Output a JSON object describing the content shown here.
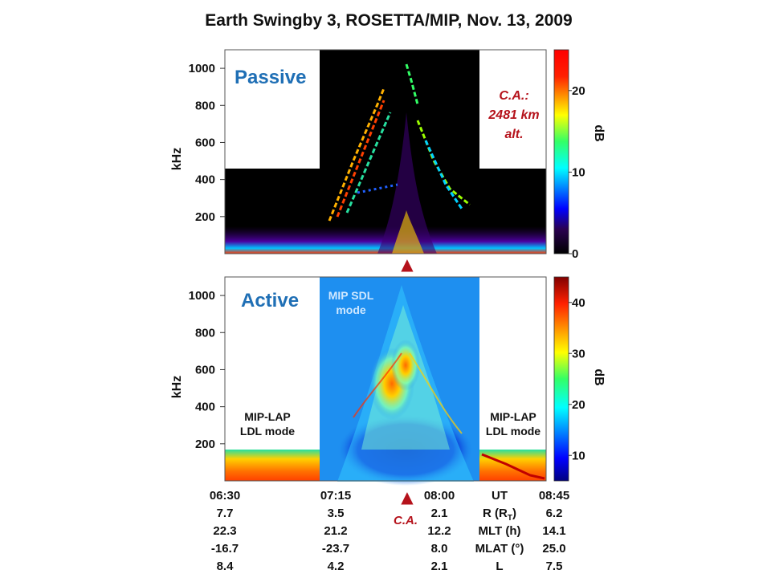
{
  "title": "Earth Swingby 3, ROSETTA/MIP, Nov. 13, 2009",
  "chart_data": [
    {
      "type": "heatmap",
      "panel_label": "Passive",
      "ylabel": "kHz",
      "yticks": [
        "1000",
        "800",
        "600",
        "400",
        "200"
      ],
      "ylim": [
        0,
        1100
      ],
      "colorbar": {
        "label": "dB",
        "ticks": [
          "20",
          "10",
          "0"
        ],
        "range": [
          0,
          25
        ]
      },
      "annotation": [
        "C.A.:",
        "2481 km",
        "alt."
      ],
      "ca_marker": "▲"
    },
    {
      "type": "heatmap",
      "panel_label": "Active",
      "ylabel": "kHz",
      "yticks": [
        "1000",
        "800",
        "600",
        "400",
        "200"
      ],
      "ylim": [
        0,
        1100
      ],
      "colorbar": {
        "label": "dB",
        "ticks": [
          "40",
          "30",
          "20",
          "10"
        ],
        "range": [
          5,
          45
        ]
      },
      "mode_labels": {
        "center": [
          "MIP SDL",
          "mode"
        ],
        "left": [
          "MIP-LAP",
          "LDL mode"
        ],
        "right": [
          "MIP-LAP",
          "LDL mode"
        ]
      },
      "ca_marker": "▲"
    }
  ],
  "time_axis": {
    "times": [
      "06:30",
      "07:15",
      "08:00",
      "08:45"
    ],
    "UT_label": "UT",
    "ca_marker": "▲",
    "ca_label": "C.A.",
    "rows": [
      {
        "label": "R (RT)",
        "label_main": "R (R",
        "label_sub": "T",
        "label_end": ")",
        "values": [
          "7.7",
          "3.5",
          "2.1",
          "6.2"
        ]
      },
      {
        "label": "MLT (h)",
        "values": [
          "22.3",
          "21.2",
          "12.2",
          "14.1"
        ]
      },
      {
        "label": "MLAT (°)",
        "values": [
          "-16.7",
          "-23.7",
          "8.0",
          "25.0"
        ]
      },
      {
        "label": "L",
        "values": [
          "8.4",
          "4.2",
          "2.1",
          "7.5"
        ]
      }
    ]
  },
  "colors": {
    "ca_red": "#b5121b",
    "panel_blue": "#1f6fb5",
    "passive_bg": "#000000",
    "active_bg": "#1e8ff0"
  }
}
